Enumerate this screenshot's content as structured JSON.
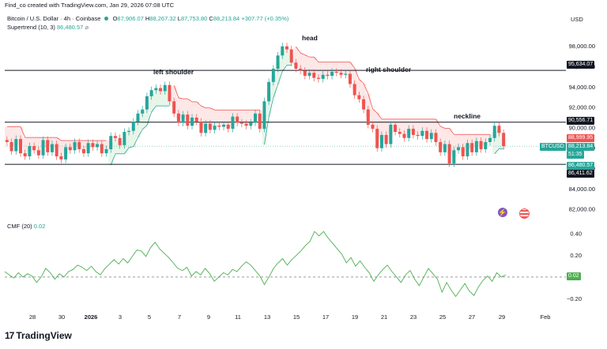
{
  "header": {
    "creator_note": "Find_co created with TradingView.com, Jan 29, 2026 07:08 UTC",
    "symbol": "Bitcoin / U.S. Dollar · 4h · Coinbase",
    "ohlc": {
      "open_label": "O",
      "open": "87,906.07",
      "high_label": "H",
      "high": "88,267.32",
      "low_label": "L",
      "low": "87,753.80",
      "close_label": "C",
      "close": "88,213.84",
      "change": "+307.77 (+0.35%)"
    },
    "supertrend_label": "Supertrend (10, 3)",
    "supertrend_value": "86,480.57"
  },
  "price_axis": {
    "currency": "USD",
    "ticks": [
      "98,000.00",
      "96,000.00",
      "94,000.00",
      "92,000.00",
      "90,000.00",
      "88,000.00",
      "86,000.00",
      "84,000.00",
      "82,000.00"
    ]
  },
  "tags": {
    "right_shoulder_line": "95,634.07",
    "neckline": "90,556.71",
    "red_level": "88,999.95",
    "symbol": "BTCUSD",
    "last_price": "88,213.84",
    "countdown": "51:35",
    "supertrend": "86,480.57",
    "support": "86,411.62",
    "cmf": "0.02"
  },
  "annotations": {
    "head": "head",
    "left_shoulder": "left shoulder",
    "right_shoulder": "right shoulder",
    "neckline": "neckline"
  },
  "cmf": {
    "label": "CMF (20)",
    "value": "0.02",
    "ticks": [
      "0.40",
      "0.20",
      "−0.20"
    ]
  },
  "time_axis": [
    "28",
    "30",
    "2026",
    "3",
    "5",
    "7",
    "9",
    "11",
    "13",
    "15",
    "17",
    "19",
    "21",
    "23",
    "25",
    "27",
    "29",
    "Feb"
  ],
  "brand": "TradingView",
  "colors": {
    "up": "#26a69a",
    "down": "#ef5350",
    "support_fill": "#e8f5e9",
    "resist_fill": "#fde7e7",
    "line": "#131722",
    "cmf": "#4caf50"
  },
  "chart_data": {
    "type": "candlestick",
    "interval": "4h",
    "price_ylim": [
      81000,
      99600
    ],
    "cmf_ylim": [
      -0.3,
      0.48
    ],
    "horizontal_levels": [
      95634.07,
      90556.71,
      86411.62
    ],
    "candles_close": [
      88600,
      87700,
      88900,
      87500,
      87200,
      88200,
      87800,
      87300,
      88800,
      87600,
      88400,
      87200,
      86900,
      88100,
      87800,
      88600,
      87900,
      87500,
      88500,
      88100,
      88400,
      87500,
      87900,
      89200,
      89000,
      88300,
      89600,
      89700,
      90600,
      91400,
      91800,
      93100,
      93700,
      93900,
      93600,
      94200,
      92600,
      91400,
      90500,
      91300,
      90200,
      91000,
      90600,
      89500,
      90400,
      89800,
      90200,
      90100,
      90300,
      89900,
      91100,
      90500,
      90400,
      90200,
      90500,
      91400,
      89900,
      92600,
      94500,
      95800,
      97100,
      98000,
      97700,
      96400,
      95800,
      95600,
      95100,
      95400,
      94900,
      94800,
      95200,
      95100,
      95500,
      95400,
      95200,
      95300,
      94300,
      93200,
      92800,
      91800,
      90300,
      89900,
      88000,
      89300,
      88400,
      90300,
      89600,
      89400,
      89000,
      89900,
      89300,
      89200,
      89700,
      88900,
      89500,
      88600,
      87600,
      88400,
      86500,
      87800,
      88100,
      87200,
      88500,
      87600,
      88700,
      87900,
      88600,
      89000,
      90200,
      89500,
      88200
    ],
    "cmf_values": [
      0.05,
      0.02,
      -0.01,
      0.04,
      0.0,
      0.03,
      0.01,
      -0.05,
      0.0,
      0.08,
      0.04,
      -0.02,
      0.03,
      0.0,
      0.05,
      0.07,
      0.11,
      0.09,
      0.06,
      0.1,
      0.05,
      0.02,
      0.08,
      0.12,
      0.16,
      0.12,
      0.17,
      0.13,
      0.19,
      0.25,
      0.24,
      0.19,
      0.27,
      0.32,
      0.26,
      0.22,
      0.18,
      0.13,
      0.08,
      0.06,
      0.09,
      0.01,
      0.05,
      0.02,
      0.08,
      0.03,
      -0.04,
      0.0,
      0.04,
      0.02,
      0.07,
      0.05,
      0.1,
      0.14,
      0.11,
      0.06,
      0.01,
      -0.07,
      0.0,
      0.08,
      0.13,
      0.17,
      0.11,
      0.16,
      0.2,
      0.24,
      0.29,
      0.33,
      0.42,
      0.38,
      0.42,
      0.36,
      0.31,
      0.26,
      0.21,
      0.13,
      0.18,
      0.1,
      0.15,
      0.09,
      0.04,
      -0.04,
      0.02,
      0.07,
      0.11,
      0.05,
      0.0,
      -0.05,
      0.02,
      0.06,
      -0.02,
      -0.08,
      0.0,
      0.08,
      0.03,
      -0.02,
      -0.14,
      -0.05,
      -0.12,
      -0.18,
      -0.12,
      -0.06,
      -0.13,
      -0.17,
      -0.09,
      -0.03,
      0.01,
      -0.04,
      0.04,
      0.0,
      0.02
    ]
  }
}
